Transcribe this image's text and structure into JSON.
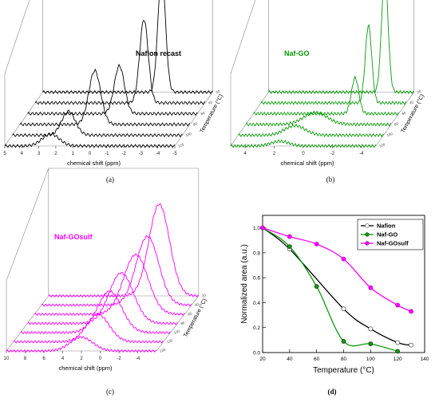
{
  "chart_data": [
    {
      "panel": "(a)",
      "type": "line",
      "title": "Nafion recast",
      "xlabel": "chemical shift (ppm)",
      "ylabel": "Temperature (°C)",
      "x_ticks": [
        "5",
        "4",
        "3",
        "2",
        "1",
        "0",
        "-1",
        "-2",
        "-3",
        "-4",
        "-5"
      ],
      "depth_ticks": [
        "120",
        "100",
        "80",
        "60",
        "40",
        "20"
      ],
      "color": "#000000",
      "series": [
        {
          "temperature": 120,
          "peak_ppm": 2.3,
          "height": 0.1,
          "width": 0.5
        },
        {
          "temperature": 100,
          "peak_ppm": 1.7,
          "height": 0.2,
          "width": 0.4
        },
        {
          "temperature": 80,
          "peak_ppm": 0.6,
          "height": 0.45,
          "width": 0.35
        },
        {
          "temperature": 60,
          "peak_ppm": -0.4,
          "height": 0.4,
          "width": 0.3
        },
        {
          "temperature": 40,
          "peak_ppm": -1.4,
          "height": 0.7,
          "width": 0.25
        },
        {
          "temperature": 20,
          "peak_ppm": -2.0,
          "height": 1.0,
          "width": 0.22
        }
      ]
    },
    {
      "panel": "(b)",
      "type": "line",
      "title": "Naf-GO",
      "xlabel": "chemical shift (ppm)",
      "ylabel": "Temperature (°C)",
      "x_ticks": [
        "4",
        "2",
        "0",
        "-2",
        "-4"
      ],
      "depth_ticks": [
        "120",
        "100",
        "80",
        "60",
        "40",
        "20"
      ],
      "color": "#0a9a0a",
      "series": [
        {
          "temperature": 120,
          "peak_ppm": 1.6,
          "height": 0.04,
          "width": 0.6
        },
        {
          "temperature": 100,
          "peak_ppm": 1.1,
          "height": 0.08,
          "width": 0.7
        },
        {
          "temperature": 80,
          "peak_ppm": 0.2,
          "height": 0.1,
          "width": 0.8
        },
        {
          "temperature": 60,
          "peak_ppm": -2.0,
          "height": 0.3,
          "width": 0.25
        },
        {
          "temperature": 40,
          "peak_ppm": -2.4,
          "height": 0.65,
          "width": 0.22
        },
        {
          "temperature": 20,
          "peak_ppm": -3.0,
          "height": 1.0,
          "width": 0.22
        }
      ]
    },
    {
      "panel": "(c)",
      "type": "line",
      "title": "Naf-GOsulf",
      "xlabel": "chemical shift (ppm)",
      "ylabel": "Temperature (°C)",
      "x_ticks": [
        "10",
        "8",
        "6",
        "4",
        "2",
        "0",
        "-2",
        "-4"
      ],
      "depth_ticks": [
        "130",
        "120",
        "100",
        "80",
        "60",
        "40",
        "20"
      ],
      "color": "#ff00ff",
      "series": [
        {
          "temperature": 130,
          "peak_ppm": 2.0,
          "height": 0.15,
          "width": 1.2
        },
        {
          "temperature": 120,
          "peak_ppm": 1.0,
          "height": 0.3,
          "width": 1.2
        },
        {
          "temperature": 100,
          "peak_ppm": 0.5,
          "height": 0.45,
          "width": 1.3
        },
        {
          "temperature": 80,
          "peak_ppm": 0.0,
          "height": 0.55,
          "width": 1.3
        },
        {
          "temperature": 60,
          "peak_ppm": -0.8,
          "height": 0.65,
          "width": 1.3
        },
        {
          "temperature": 40,
          "peak_ppm": -1.3,
          "height": 0.75,
          "width": 1.2
        },
        {
          "temperature": 20,
          "peak_ppm": -1.8,
          "height": 1.0,
          "width": 1.1
        }
      ]
    },
    {
      "panel": "(d)",
      "type": "line",
      "xlabel": "Temperature (°C)",
      "ylabel": "Normalized area (a.u.)",
      "xlim": [
        20,
        140
      ],
      "ylim": [
        0.0,
        1.1
      ],
      "x_ticks": [
        20,
        40,
        60,
        80,
        100,
        120,
        140
      ],
      "y_ticks": [
        0.0,
        0.2,
        0.4,
        0.6,
        0.8,
        1.0
      ],
      "legend_position": "top-right",
      "series": [
        {
          "name": "Nafion",
          "color": "#000000",
          "marker": "open",
          "x": [
            20,
            40,
            80,
            100,
            120,
            130
          ],
          "y": [
            1.0,
            0.83,
            0.35,
            0.19,
            0.08,
            0.06
          ]
        },
        {
          "name": "Naf-GO",
          "color": "#0a9a0a",
          "marker": "filled",
          "x": [
            20,
            40,
            60,
            80,
            100,
            120
          ],
          "y": [
            1.0,
            0.85,
            0.53,
            0.09,
            0.07,
            0.01
          ]
        },
        {
          "name": "Naf-GOsulf",
          "color": "#ff00ff",
          "marker": "filled",
          "x": [
            20,
            40,
            60,
            80,
            100,
            120,
            130
          ],
          "y": [
            1.0,
            0.93,
            0.87,
            0.75,
            0.52,
            0.38,
            0.33
          ]
        }
      ]
    }
  ]
}
